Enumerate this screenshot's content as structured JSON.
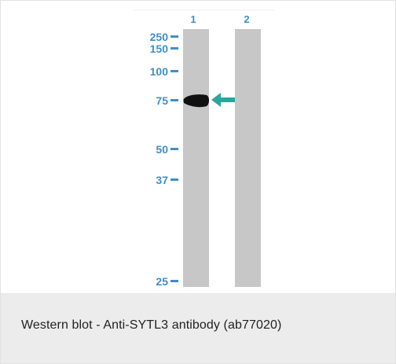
{
  "colors": {
    "lane": "#c7c7c7",
    "marker_text": "#3e8fc9",
    "arrow": "#29a79b",
    "band": "#111111",
    "caption_bg": "#ececec"
  },
  "blot": {
    "lane_labels": [
      "1",
      "2"
    ],
    "markers": [
      "250",
      "150",
      "100",
      "75",
      "50",
      "37",
      "25"
    ],
    "arrow_icon": "arrow-left-icon"
  },
  "caption": {
    "text": "Western blot - Anti-SYTL3 antibody (ab77020)"
  }
}
